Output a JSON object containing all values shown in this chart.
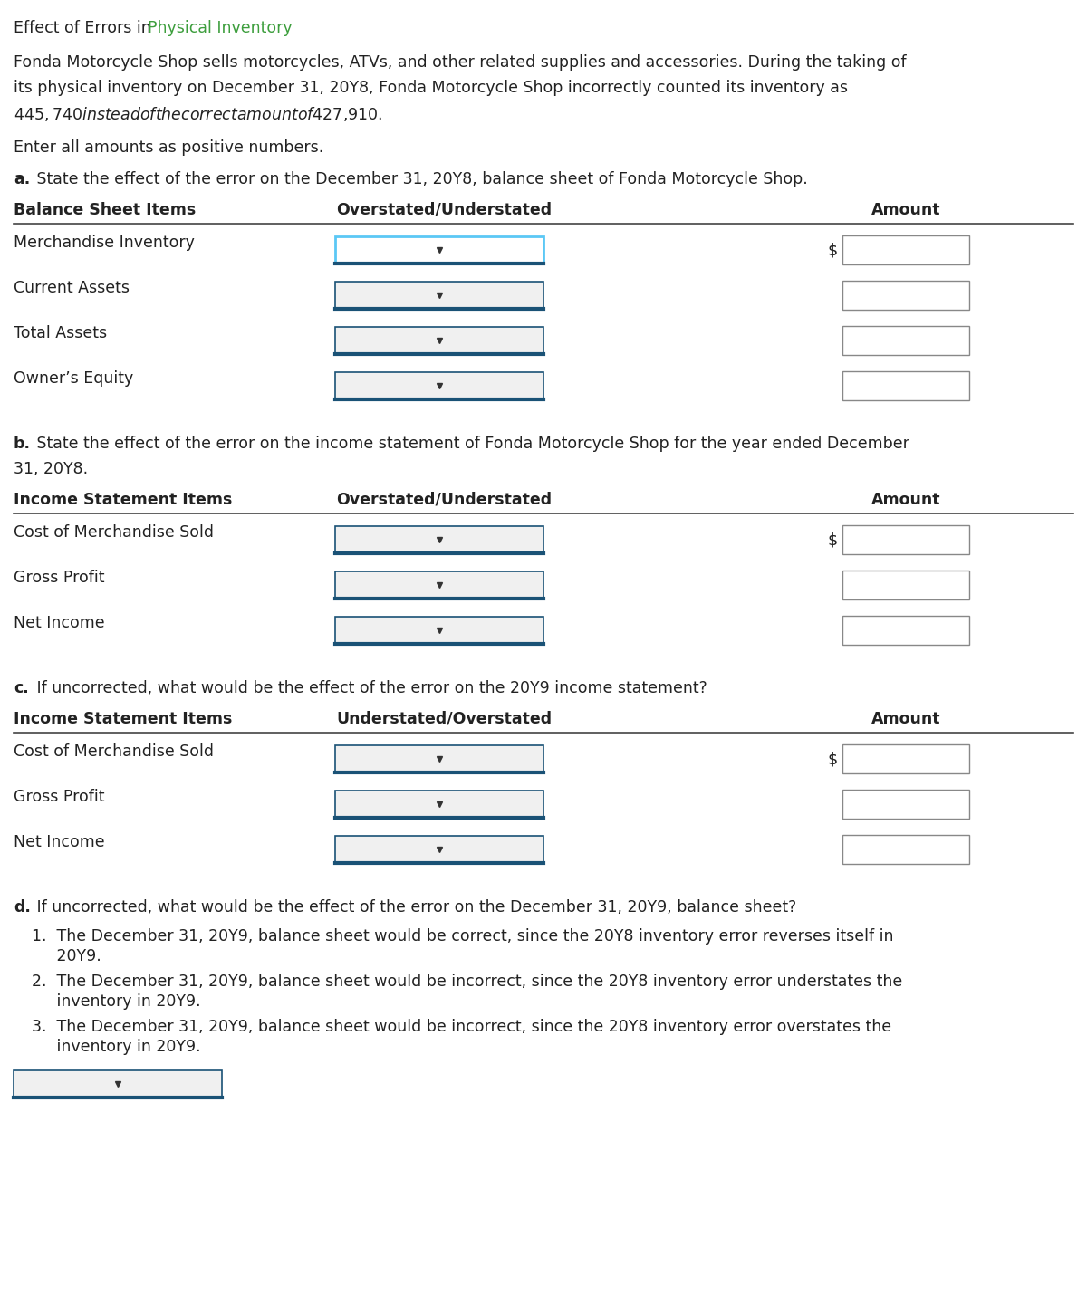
{
  "title_black": "Effect of Errors in ",
  "title_green": "Physical Inventory",
  "title_green_color": "#3d9e3d",
  "bg_color": "#ffffff",
  "body_line1": "Fonda Motorcycle Shop sells motorcycles, ATVs, and other related supplies and accessories. During the taking of",
  "body_line2": "its physical inventory on December 31, 20Y8, Fonda Motorcycle Shop incorrectly counted its inventory as",
  "body_line3": "$445,740 instead of the correct amount of $427,910.",
  "enter_text": "Enter all amounts as positive numbers.",
  "section_a_label": "a.",
  "section_a_text": " State the effect of the error on the December 31, 20Y8, balance sheet of Fonda Motorcycle Shop.",
  "section_a_header_col1": "Balance Sheet Items",
  "section_a_header_col2": "Overstated/Understated",
  "section_a_header_col3": "Amount",
  "section_a_rows": [
    "Merchandise Inventory",
    "Current Assets",
    "Total Assets",
    "Owner’s Equity"
  ],
  "section_b_label": "b.",
  "section_b_text1": " State the effect of the error on the income statement of Fonda Motorcycle Shop for the year ended December",
  "section_b_text2": "31, 20Y8.",
  "section_b_header_col1": "Income Statement Items",
  "section_b_header_col2": "Overstated/Understated",
  "section_b_header_col3": "Amount",
  "section_b_rows": [
    "Cost of Merchandise Sold",
    "Gross Profit",
    "Net Income"
  ],
  "section_c_label": "c.",
  "section_c_text": " If uncorrected, what would be the effect of the error on the 20Y9 income statement?",
  "section_c_header_col1": "Income Statement Items",
  "section_c_header_col2": "Understated/Overstated",
  "section_c_header_col3": "Amount",
  "section_c_rows": [
    "Cost of Merchandise Sold",
    "Gross Profit",
    "Net Income"
  ],
  "section_d_label": "d.",
  "section_d_text": " If uncorrected, what would be the effect of the error on the December 31, 20Y9, balance sheet?",
  "section_d_item1a": "1.  The December 31, 20Y9, balance sheet would be correct, since the 20Y8 inventory error reverses itself in",
  "section_d_item1b": "     20Y9.",
  "section_d_item2a": "2.  The December 31, 20Y9, balance sheet would be incorrect, since the 20Y8 inventory error understates the",
  "section_d_item2b": "     inventory in 20Y9.",
  "section_d_item3a": "3.  The December 31, 20Y9, balance sheet would be incorrect, since the 20Y8 inventory error overstates the",
  "section_d_item3b": "     inventory in 20Y9.",
  "dropdown_border_first": "#5bc8f5",
  "dropdown_border_others": "#1a5276",
  "dropdown_fill_first": "#ffffff",
  "dropdown_fill_others": "#f0f0f0",
  "input_border": "#888888",
  "input_fill": "#ffffff",
  "text_color": "#222222",
  "font_size": 12.5
}
